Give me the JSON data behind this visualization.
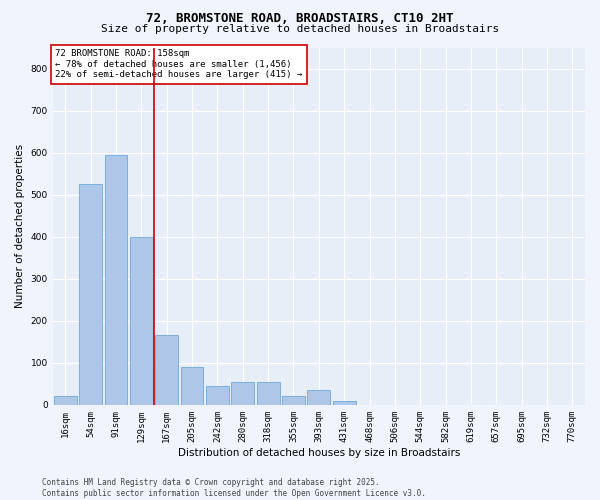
{
  "title_line1": "72, BROMSTONE ROAD, BROADSTAIRS, CT10 2HT",
  "title_line2": "Size of property relative to detached houses in Broadstairs",
  "xlabel": "Distribution of detached houses by size in Broadstairs",
  "ylabel": "Number of detached properties",
  "categories": [
    "16sqm",
    "54sqm",
    "91sqm",
    "129sqm",
    "167sqm",
    "205sqm",
    "242sqm",
    "280sqm",
    "318sqm",
    "355sqm",
    "393sqm",
    "431sqm",
    "468sqm",
    "506sqm",
    "544sqm",
    "582sqm",
    "619sqm",
    "657sqm",
    "695sqm",
    "732sqm",
    "770sqm"
  ],
  "values": [
    20,
    525,
    595,
    400,
    165,
    90,
    45,
    55,
    55,
    20,
    35,
    10,
    0,
    0,
    0,
    0,
    0,
    0,
    0,
    0,
    0
  ],
  "bar_color": "#aec6e8",
  "bar_edge_color": "#5a9fd4",
  "vline_x": 3.5,
  "vline_color": "#cc0000",
  "annotation_text": "72 BROMSTONE ROAD: 158sqm\n← 78% of detached houses are smaller (1,456)\n22% of semi-detached houses are larger (415) →",
  "annotation_box_color": "#cc0000",
  "ylim": [
    0,
    850
  ],
  "yticks": [
    0,
    100,
    200,
    300,
    400,
    500,
    600,
    700,
    800
  ],
  "background_color": "#e8eef8",
  "grid_color": "#ffffff",
  "footer_line1": "Contains HM Land Registry data © Crown copyright and database right 2025.",
  "footer_line2": "Contains public sector information licensed under the Open Government Licence v3.0.",
  "title_fontsize": 9,
  "subtitle_fontsize": 8,
  "annotation_fontsize": 6.5,
  "axis_label_fontsize": 7.5,
  "tick_fontsize": 6.5,
  "footer_fontsize": 5.5,
  "fig_bg_color": "#f0f4fc"
}
